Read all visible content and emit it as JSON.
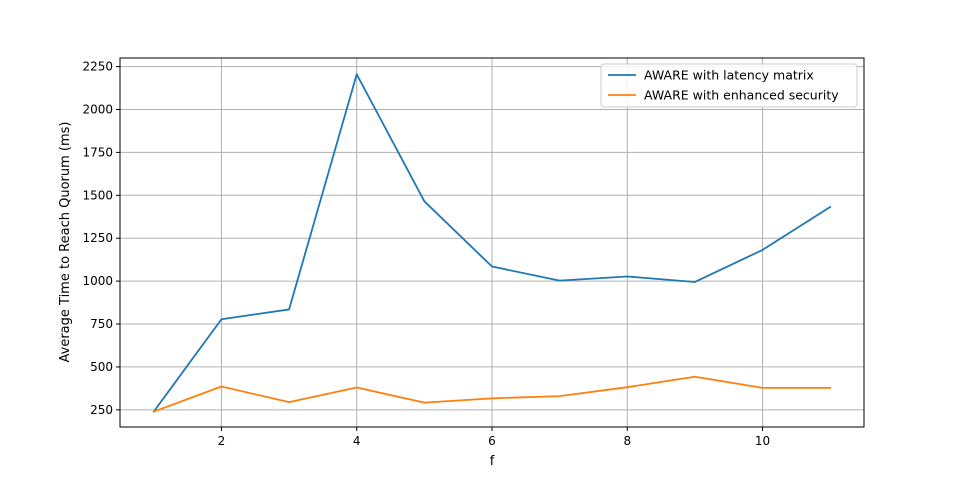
{
  "chart_data": {
    "type": "line",
    "title": "",
    "xlabel": "f",
    "ylabel": "Average Time to Reach Quorum (ms)",
    "x": [
      1,
      2,
      3,
      4,
      5,
      6,
      7,
      8,
      9,
      10,
      11
    ],
    "xlim": [
      0.5,
      11.5
    ],
    "ylim": [
      150,
      2300
    ],
    "xticks": [
      2,
      4,
      6,
      8,
      10
    ],
    "yticks": [
      250,
      500,
      750,
      1000,
      1250,
      1500,
      1750,
      2000,
      2250
    ],
    "grid": true,
    "legend_position": "top-right",
    "series": [
      {
        "name": "AWARE with latency matrix",
        "color": "#1f77b4",
        "values": [
          240,
          778,
          835,
          2205,
          1465,
          1085,
          1003,
          1027,
          995,
          1182,
          1432
        ]
      },
      {
        "name": "AWARE with enhanced security",
        "color": "#ff7f0e",
        "values": [
          240,
          386,
          295,
          380,
          292,
          317,
          330,
          382,
          443,
          378,
          378
        ]
      }
    ]
  }
}
